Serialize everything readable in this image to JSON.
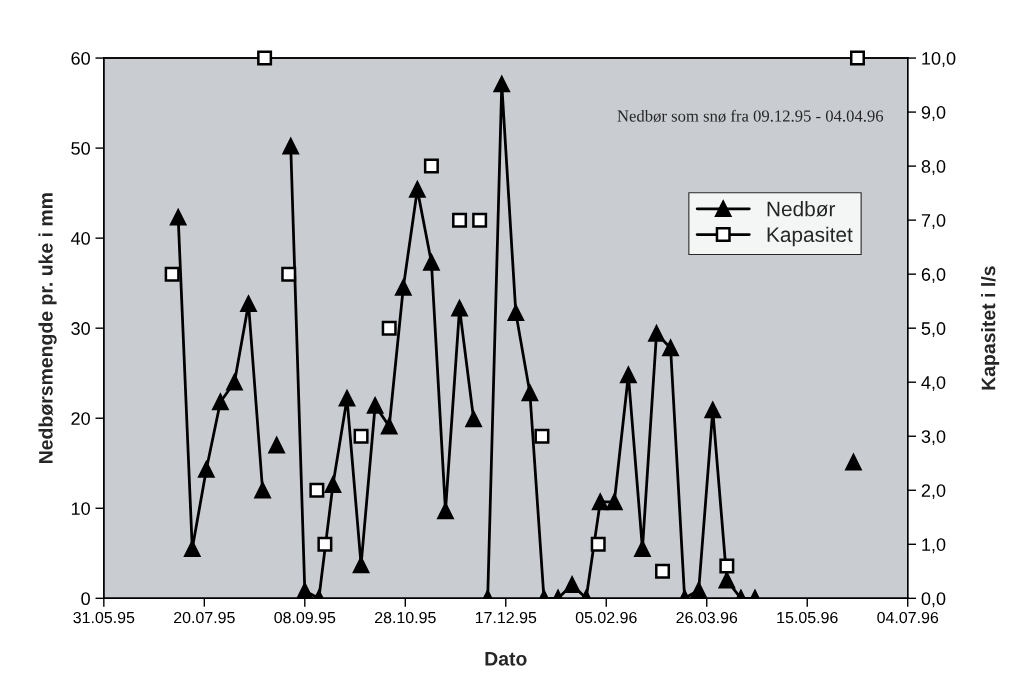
{
  "chart_data": {
    "type": "line",
    "xlabel": "Dato",
    "ylabel": "Nedbørsmengde pr. uke i mm",
    "y2label": "Kapasitet i l/s",
    "annotations": [
      "Nedbør som snø fra 09.12.95 - 04.04.96"
    ],
    "series": [
      {
        "name": "Nedbør",
        "color": "#000000",
        "marker": "triangle",
        "line_style": "solid",
        "x": [
          "1995-07-07",
          "1995-07-14",
          "1995-07-21",
          "1995-07-28",
          "1995-08-04",
          "1995-08-11",
          "1995-08-18",
          "1995-08-21T12:00",
          "1995-08-25",
          "1995-08-28T12:00",
          "1995-09-01",
          "1995-09-08",
          "1995-09-15",
          "1995-09-22",
          "1995-09-29",
          "1995-10-06",
          "1995-10-13",
          "1995-10-20",
          "1995-10-27",
          "1995-11-03",
          "1995-11-10",
          "1995-11-17",
          "1995-11-24",
          "1995-12-01",
          "1995-12-04T12:00",
          "1995-12-08",
          "1995-12-15",
          "1995-12-22",
          "1995-12-29",
          "1996-01-05",
          "1996-01-12",
          "1996-01-19",
          "1996-01-26",
          "1996-02-02",
          "1996-02-09",
          "1996-02-16",
          "1996-02-23",
          "1996-03-01",
          "1996-03-08",
          "1996-03-15",
          "1996-03-22",
          "1996-03-29",
          "1996-04-05",
          "1996-04-12",
          "1996-04-19",
          "1996-05-10T12:00",
          "1996-06-07"
        ],
        "values": [
          42.3,
          5.5,
          14.3,
          21.8,
          24.0,
          32.7,
          12.0,
          null,
          17.0,
          null,
          50.2,
          0.8,
          0,
          12.6,
          22.2,
          3.7,
          21.4,
          19.1,
          34.5,
          45.4,
          37.3,
          9.7,
          32.2,
          19.9,
          null,
          0,
          57.1,
          31.7,
          22.8,
          0,
          0,
          1.5,
          0,
          10.7,
          10.7,
          24.8,
          5.5,
          29.4,
          27.8,
          0,
          0.9,
          20.9,
          2.0,
          0,
          0,
          null,
          15.1
        ]
      },
      {
        "name": "Kapasitet",
        "color": "#000000",
        "type": "scatter",
        "marker": "square",
        "line_style": "solid",
        "axis": "y2",
        "x": [
          "1995-07-04",
          "1995-08-19",
          "1995-08-31",
          "1995-09-14",
          "1995-09-18",
          "1995-10-06",
          "1995-10-20",
          "1995-11-10",
          "1995-11-24",
          "1995-12-04",
          "1996-01-04",
          "1996-02-01",
          "1996-03-04",
          "1996-04-05",
          "1996-06-09"
        ],
        "values": [
          6.0,
          10.0,
          6.0,
          2.0,
          1.0,
          3.0,
          5.0,
          8.0,
          7.0,
          7.0,
          3.0,
          1.0,
          0.5,
          0.6,
          10.0
        ]
      }
    ],
    "xlim": [
      "1995-05-31",
      "1996-07-04"
    ],
    "xticks": [
      {
        "value": "1995-05-31",
        "label": "31.05.95"
      },
      {
        "value": "1995-07-20",
        "label": "20.07.95"
      },
      {
        "value": "1995-09-08",
        "label": "08.09.95"
      },
      {
        "value": "1995-10-28",
        "label": "28.10.95"
      },
      {
        "value": "1995-12-17",
        "label": "17.12.95"
      },
      {
        "value": "1996-02-05",
        "label": "05.02.96"
      },
      {
        "value": "1996-03-26",
        "label": "26.03.96"
      },
      {
        "value": "1996-05-15",
        "label": "15.05.96"
      },
      {
        "value": "1996-07-04",
        "label": "04.07.96"
      }
    ],
    "ylim": [
      0,
      60
    ],
    "yticks": [
      0,
      10,
      20,
      30,
      40,
      50,
      60
    ],
    "y2lim": [
      0,
      10
    ],
    "y2ticks": [
      {
        "value": 0,
        "label": "0,0"
      },
      {
        "value": 1,
        "label": "1,0"
      },
      {
        "value": 2,
        "label": "2,0"
      },
      {
        "value": 3,
        "label": "3,0"
      },
      {
        "value": 4,
        "label": "4,0"
      },
      {
        "value": 5,
        "label": "5,0"
      },
      {
        "value": 6,
        "label": "6,0"
      },
      {
        "value": 7,
        "label": "7,0"
      },
      {
        "value": 8,
        "label": "8,0"
      },
      {
        "value": 9,
        "label": "9,0"
      },
      {
        "value": 10,
        "label": "10,0"
      }
    ],
    "legend": "top right"
  }
}
